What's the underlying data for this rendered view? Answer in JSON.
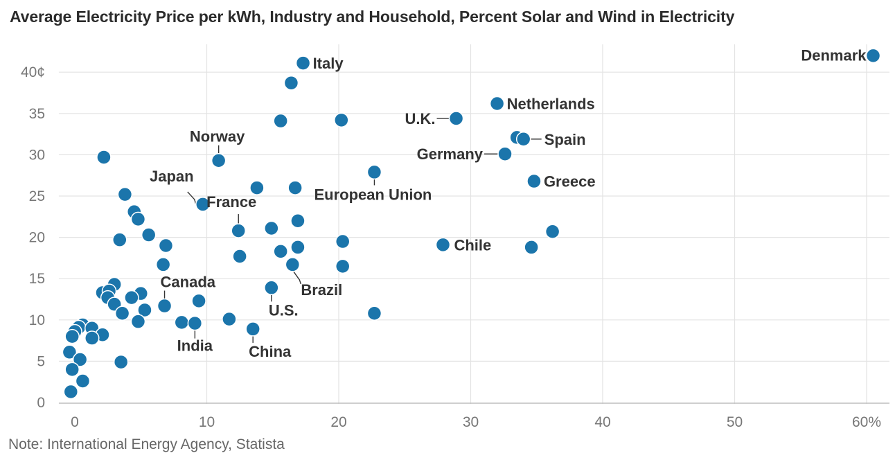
{
  "chart_data": {
    "type": "scatter",
    "title": "Average Electricity Price per kWh, Industry and Household, Percent Solar and Wind in Electricity",
    "note": "Note: International Energy  Agency, Statista",
    "xlim": [
      -1,
      61
    ],
    "ylim": [
      0,
      42
    ],
    "x_ticks": [
      {
        "value": 0,
        "label": "0"
      },
      {
        "value": 10,
        "label": "10"
      },
      {
        "value": 20,
        "label": "20"
      },
      {
        "value": 30,
        "label": "30"
      },
      {
        "value": 40,
        "label": "40"
      },
      {
        "value": 50,
        "label": "50"
      },
      {
        "value": 60,
        "label": "60%"
      }
    ],
    "y_ticks": [
      {
        "value": 0,
        "label": "0"
      },
      {
        "value": 5,
        "label": "5"
      },
      {
        "value": 10,
        "label": "10"
      },
      {
        "value": 15,
        "label": "15"
      },
      {
        "value": 20,
        "label": "20"
      },
      {
        "value": 25,
        "label": "25"
      },
      {
        "value": 30,
        "label": "30"
      },
      {
        "value": 35,
        "label": "35"
      },
      {
        "value": 40,
        "label": "40¢"
      }
    ],
    "grid": true,
    "colors": {
      "dot": "#1b75ab"
    },
    "points": [
      {
        "x": 60.5,
        "y": 42.0,
        "label": "Denmark"
      },
      {
        "x": 17.3,
        "y": 41.1,
        "label": "Italy"
      },
      {
        "x": 16.4,
        "y": 38.7
      },
      {
        "x": 32.0,
        "y": 36.2,
        "label": "Netherlands"
      },
      {
        "x": 15.6,
        "y": 34.1
      },
      {
        "x": 20.2,
        "y": 34.2
      },
      {
        "x": 28.9,
        "y": 34.4,
        "label": "U.K."
      },
      {
        "x": 33.5,
        "y": 32.1
      },
      {
        "x": 34.0,
        "y": 31.9,
        "label": "Spain"
      },
      {
        "x": 32.6,
        "y": 30.1,
        "label": "Germany"
      },
      {
        "x": 2.2,
        "y": 29.7
      },
      {
        "x": 10.9,
        "y": 29.3,
        "label": "Norway"
      },
      {
        "x": 22.7,
        "y": 27.9,
        "label": "European Union"
      },
      {
        "x": 34.8,
        "y": 26.8,
        "label": "Greece"
      },
      {
        "x": 13.8,
        "y": 26.0
      },
      {
        "x": 16.7,
        "y": 26.0
      },
      {
        "x": 3.8,
        "y": 25.2
      },
      {
        "x": 9.7,
        "y": 24.0,
        "label": "Japan"
      },
      {
        "x": 4.5,
        "y": 23.1
      },
      {
        "x": 4.8,
        "y": 22.2
      },
      {
        "x": 16.9,
        "y": 22.0
      },
      {
        "x": 14.9,
        "y": 21.1
      },
      {
        "x": 12.4,
        "y": 20.8,
        "label": "France"
      },
      {
        "x": 36.2,
        "y": 20.7
      },
      {
        "x": 5.6,
        "y": 20.3
      },
      {
        "x": 3.4,
        "y": 19.7
      },
      {
        "x": 20.3,
        "y": 19.5
      },
      {
        "x": 27.9,
        "y": 19.1,
        "label": "Chile"
      },
      {
        "x": 6.9,
        "y": 19.0
      },
      {
        "x": 16.9,
        "y": 18.8
      },
      {
        "x": 34.6,
        "y": 18.8
      },
      {
        "x": 15.6,
        "y": 18.3
      },
      {
        "x": 12.5,
        "y": 17.7
      },
      {
        "x": 6.7,
        "y": 16.7
      },
      {
        "x": 16.5,
        "y": 16.7,
        "label": "Brazil"
      },
      {
        "x": 20.3,
        "y": 16.5
      },
      {
        "x": 3.0,
        "y": 14.3
      },
      {
        "x": 14.9,
        "y": 13.9,
        "label": "U.S."
      },
      {
        "x": 2.1,
        "y": 13.3
      },
      {
        "x": 2.6,
        "y": 13.5
      },
      {
        "x": 5.0,
        "y": 13.2
      },
      {
        "x": 2.5,
        "y": 12.7
      },
      {
        "x": 4.3,
        "y": 12.7
      },
      {
        "x": 9.4,
        "y": 12.3
      },
      {
        "x": 3.0,
        "y": 11.9
      },
      {
        "x": 6.8,
        "y": 11.7,
        "label": "Canada"
      },
      {
        "x": 5.3,
        "y": 11.2
      },
      {
        "x": 3.6,
        "y": 10.8
      },
      {
        "x": 22.7,
        "y": 10.8
      },
      {
        "x": 11.7,
        "y": 10.1
      },
      {
        "x": 4.8,
        "y": 9.8
      },
      {
        "x": 8.1,
        "y": 9.7
      },
      {
        "x": 9.1,
        "y": 9.6,
        "label": "India"
      },
      {
        "x": 0.6,
        "y": 9.4
      },
      {
        "x": 0.3,
        "y": 9.1
      },
      {
        "x": 1.3,
        "y": 9.0
      },
      {
        "x": 13.5,
        "y": 8.9,
        "label": "China"
      },
      {
        "x": 0.0,
        "y": 8.6
      },
      {
        "x": -0.2,
        "y": 8.0
      },
      {
        "x": 2.1,
        "y": 8.2
      },
      {
        "x": 1.3,
        "y": 7.8
      },
      {
        "x": -0.4,
        "y": 6.1
      },
      {
        "x": 0.4,
        "y": 5.2
      },
      {
        "x": 3.5,
        "y": 4.9
      },
      {
        "x": -0.2,
        "y": 4.0
      },
      {
        "x": 0.6,
        "y": 2.6
      },
      {
        "x": -0.3,
        "y": 1.3
      }
    ]
  }
}
